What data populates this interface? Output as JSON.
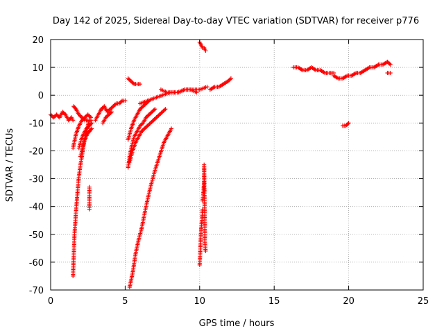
{
  "chart_data": {
    "type": "scatter",
    "title": "Day 142 of 2025, Sidereal Day-to-day VTEC variation (SDTVAR) for receiver p776",
    "xlabel": "GPS time / hours",
    "ylabel": "SDTVAR / TECUs",
    "xlim": [
      0,
      25
    ],
    "ylim": [
      -70,
      20
    ],
    "x_ticks": [
      "0",
      "5",
      "10",
      "15",
      "20",
      "25"
    ],
    "y_ticks": [
      "20",
      "10",
      "0",
      "-10",
      "-20",
      "-30",
      "-40",
      "-50",
      "-60",
      "-70"
    ],
    "x_tick_values": [
      0,
      5,
      10,
      15,
      20,
      25
    ],
    "y_tick_values": [
      20,
      10,
      0,
      -10,
      -20,
      -30,
      -40,
      -50,
      -60,
      -70
    ],
    "grid": true,
    "marker": "+",
    "series": [
      {
        "name": "p776",
        "color": "#ff0000",
        "segments": [
          {
            "x": [
              0.0,
              0.2,
              0.4,
              0.6,
              0.8,
              1.0,
              1.2,
              1.4,
              1.5
            ],
            "y": [
              -7,
              -8,
              -7,
              -8,
              -6,
              -7,
              -9,
              -8,
              -9
            ]
          },
          {
            "x": [
              1.5,
              1.7,
              1.9,
              2.1,
              2.3,
              2.5,
              2.7
            ],
            "y": [
              -19,
              -14,
              -11,
              -9,
              -8,
              -7,
              -8
            ]
          },
          {
            "x": [
              1.5,
              1.55,
              1.6,
              1.7,
              1.8,
              1.9,
              2.0,
              2.1,
              2.2,
              2.3,
              2.4,
              2.5,
              2.6
            ],
            "y": [
              -65,
              -58,
              -50,
              -42,
              -35,
              -29,
              -25,
              -22,
              -18,
              -15,
              -13,
              -11,
              -9
            ]
          },
          {
            "x": [
              1.9,
              2.05,
              2.2,
              2.4,
              2.6,
              2.75
            ],
            "y": [
              -19,
              -16,
              -14,
              -12,
              -11,
              -10
            ]
          },
          {
            "x": [
              2.0,
              2.15,
              2.3,
              2.45,
              2.6,
              2.75
            ],
            "y": [
              -22,
              -19,
              -16,
              -14,
              -13,
              -12
            ]
          },
          {
            "x": [
              1.55,
              1.7,
              1.9,
              2.1,
              2.3,
              2.5,
              2.7
            ],
            "y": [
              -4,
              -5,
              -7,
              -8,
              -9,
              -9,
              -9
            ]
          },
          {
            "x": [
              2.6,
              2.6
            ],
            "y": [
              -33,
              -41
            ]
          },
          {
            "x": [
              3.0,
              3.2,
              3.4,
              3.6,
              3.8,
              4.0,
              4.2,
              4.4,
              4.6,
              4.8,
              5.0
            ],
            "y": [
              -9,
              -7,
              -5,
              -4,
              -6,
              -5,
              -4,
              -3,
              -3,
              -2,
              -2
            ]
          },
          {
            "x": [
              3.5,
              3.7,
              3.9,
              4.1
            ],
            "y": [
              -10,
              -8,
              -7,
              -6
            ]
          },
          {
            "x": [
              5.2,
              5.4,
              5.6,
              5.8,
              6.0
            ],
            "y": [
              6,
              5,
              4,
              4,
              4
            ]
          },
          {
            "x": [
              5.2,
              5.4,
              5.6,
              5.8,
              6.0,
              6.2,
              6.4,
              6.6
            ],
            "y": [
              -16,
              -12,
              -9,
              -7,
              -5,
              -4,
              -3,
              -2
            ]
          },
          {
            "x": [
              5.2,
              5.3,
              5.45,
              5.6,
              5.8,
              6.0,
              6.2,
              6.4,
              6.6,
              6.8,
              7.0
            ],
            "y": [
              -26,
              -22,
              -18,
              -15,
              -13,
              -11,
              -10,
              -8,
              -7,
              -6,
              -5
            ]
          },
          {
            "x": [
              5.3,
              5.5,
              5.7,
              5.9,
              6.1,
              6.3,
              6.5,
              6.7,
              6.9,
              7.1,
              7.3,
              7.5,
              7.7
            ],
            "y": [
              -24,
              -20,
              -17,
              -15,
              -13,
              -12,
              -11,
              -10,
              -9,
              -8,
              -7,
              -6,
              -5
            ]
          },
          {
            "x": [
              5.3,
              5.5,
              5.7,
              5.9,
              6.1
            ],
            "y": [
              -69,
              -64,
              -57,
              -52,
              -48
            ]
          },
          {
            "x": [
              6.1,
              6.4,
              6.7,
              7.0,
              7.3,
              7.6,
              7.9,
              8.1
            ],
            "y": [
              -48,
              -40,
              -33,
              -27,
              -22,
              -17,
              -14,
              -12
            ]
          },
          {
            "x": [
              6.0,
              6.5,
              7.0,
              7.5,
              8.0,
              8.5,
              9.0,
              9.5,
              10.0,
              10.5
            ],
            "y": [
              -3,
              -2,
              -1,
              0,
              1,
              1,
              2,
              2,
              2,
              3
            ]
          },
          {
            "x": [
              7.4,
              7.8,
              8.2,
              8.6,
              9.0,
              9.4,
              9.8
            ],
            "y": [
              2,
              1,
              1,
              1,
              2,
              2,
              1
            ]
          },
          {
            "x": [
              10.0,
              10.1,
              10.2,
              10.3,
              10.4
            ],
            "y": [
              19,
              18,
              17,
              17,
              16
            ]
          },
          {
            "x": [
              10.0,
              10.05,
              10.1,
              10.15,
              10.2
            ],
            "y": [
              -61,
              -55,
              -48,
              -45,
              -41
            ]
          },
          {
            "x": [
              10.2,
              10.25,
              10.3,
              10.3,
              10.35,
              10.35,
              10.4
            ],
            "y": [
              -38,
              -35,
              -31,
              -25,
              -47,
              -53,
              -56
            ]
          },
          {
            "x": [
              10.7,
              11.0,
              11.3,
              11.6,
              11.9,
              12.1
            ],
            "y": [
              2,
              3,
              3,
              4,
              5,
              6
            ]
          },
          {
            "x": [
              16.3,
              16.6,
              16.9,
              17.2,
              17.5,
              17.8,
              18.1,
              18.4,
              18.7,
              19.0
            ],
            "y": [
              10,
              10,
              9,
              9,
              10,
              9,
              9,
              8,
              8,
              8
            ]
          },
          {
            "x": [
              19.0,
              19.3,
              19.6,
              19.9,
              20.2,
              20.5,
              20.8,
              21.1,
              21.4,
              21.7,
              22.0,
              22.3,
              22.6,
              22.8
            ],
            "y": [
              7,
              6,
              6,
              7,
              7,
              8,
              8,
              9,
              10,
              10,
              11,
              11,
              12,
              11
            ]
          },
          {
            "x": [
              22.6,
              22.8
            ],
            "y": [
              8,
              8
            ]
          },
          {
            "x": [
              19.6,
              19.8,
              20.0
            ],
            "y": [
              -11,
              -11,
              -10
            ]
          }
        ]
      }
    ]
  }
}
